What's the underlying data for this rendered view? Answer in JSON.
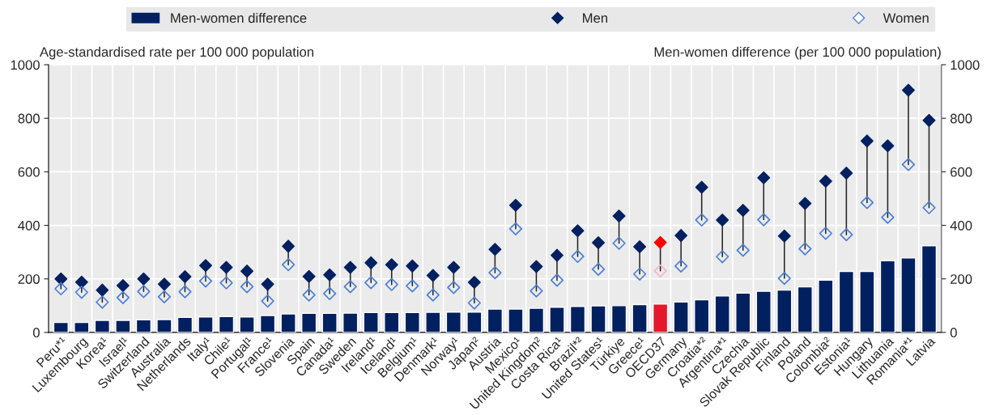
{
  "chart_data": {
    "type": "bar",
    "ylabel": "Age-standardised rate per 100 000 population",
    "y2label": "Men-women difference (per 100 000 population)",
    "categories": [
      "Peru*¹",
      "Luxembourg",
      "Korea¹",
      "Israel¹",
      "Switzerland",
      "Australia",
      "Netherlands",
      "Italy¹",
      "Chile¹",
      "Portugal¹",
      "France¹",
      "Slovenia",
      "Spain",
      "Canada¹",
      "Sweden",
      "Ireland¹",
      "Iceland¹",
      "Belgium¹",
      "Denmark¹",
      "Norway¹",
      "Japan²",
      "Austria",
      "Mexico¹",
      "United Kingdom²",
      "Costa Rica¹",
      "Brazil*²",
      "United States¹",
      "Türkiye",
      "Greece¹",
      "OECD37",
      "Germany",
      "Croatia*²",
      "Argentina*¹",
      "Czechia",
      "Slovak Republic",
      "Finland",
      "Poland",
      "Colombia²",
      "Estonia¹",
      "Hungary",
      "Lithuania",
      "Romania*¹",
      "Latvia"
    ],
    "series": [
      {
        "name": "Men-women difference",
        "axis": "y2",
        "color": "#002060",
        "colors": [
          "#002060",
          "#002060",
          "#002060",
          "#002060",
          "#002060",
          "#002060",
          "#002060",
          "#002060",
          "#002060",
          "#002060",
          "#002060",
          "#002060",
          "#002060",
          "#002060",
          "#002060",
          "#002060",
          "#002060",
          "#002060",
          "#002060",
          "#002060",
          "#002060",
          "#002060",
          "#002060",
          "#002060",
          "#002060",
          "#002060",
          "#002060",
          "#002060",
          "#002060",
          "#e3182d",
          "#002060",
          "#002060",
          "#002060",
          "#002060",
          "#002060",
          "#002060",
          "#002060",
          "#002060",
          "#002060",
          "#002060",
          "#002060",
          "#002060",
          "#002060"
        ],
        "values": [
          37,
          37,
          45,
          45,
          47,
          48,
          56,
          58,
          59,
          58,
          63,
          69,
          71,
          71,
          72,
          74,
          74,
          74,
          75,
          76,
          76,
          87,
          87,
          90,
          94,
          97,
          99,
          100,
          104,
          106,
          114,
          122,
          136,
          147,
          154,
          158,
          170,
          195,
          228,
          228,
          268,
          278,
          324
        ]
      },
      {
        "name": "Men",
        "type": "scatter",
        "marker": "diamond",
        "color": "#002060",
        "colors": [
          "#002060",
          "#002060",
          "#002060",
          "#002060",
          "#002060",
          "#002060",
          "#002060",
          "#002060",
          "#002060",
          "#002060",
          "#002060",
          "#002060",
          "#002060",
          "#002060",
          "#002060",
          "#002060",
          "#002060",
          "#002060",
          "#002060",
          "#002060",
          "#002060",
          "#002060",
          "#002060",
          "#002060",
          "#002060",
          "#002060",
          "#002060",
          "#002060",
          "#002060",
          "#ff0000",
          "#002060",
          "#002060",
          "#002060",
          "#002060",
          "#002060",
          "#002060",
          "#002060",
          "#002060",
          "#002060",
          "#002060",
          "#002060",
          "#002060",
          "#002060"
        ],
        "values": [
          200,
          188,
          158,
          175,
          200,
          180,
          208,
          250,
          243,
          229,
          180,
          322,
          209,
          215,
          243,
          260,
          253,
          248,
          213,
          243,
          187,
          310,
          475,
          246,
          288,
          380,
          335,
          435,
          320,
          336,
          362,
          542,
          420,
          456,
          578,
          360,
          482,
          565,
          595,
          715,
          697,
          905,
          792
        ]
      },
      {
        "name": "Women",
        "type": "scatter",
        "marker": "diamond",
        "color": "#4a7fd4",
        "colors": [
          "#4a7fd4",
          "#4a7fd4",
          "#4a7fd4",
          "#4a7fd4",
          "#4a7fd4",
          "#4a7fd4",
          "#4a7fd4",
          "#4a7fd4",
          "#4a7fd4",
          "#4a7fd4",
          "#4a7fd4",
          "#4a7fd4",
          "#4a7fd4",
          "#4a7fd4",
          "#4a7fd4",
          "#4a7fd4",
          "#4a7fd4",
          "#4a7fd4",
          "#4a7fd4",
          "#4a7fd4",
          "#4a7fd4",
          "#4a7fd4",
          "#4a7fd4",
          "#4a7fd4",
          "#4a7fd4",
          "#4a7fd4",
          "#4a7fd4",
          "#4a7fd4",
          "#4a7fd4",
          "#f4b6c2",
          "#4a7fd4",
          "#4a7fd4",
          "#4a7fd4",
          "#4a7fd4",
          "#4a7fd4",
          "#4a7fd4",
          "#4a7fd4",
          "#4a7fd4",
          "#4a7fd4",
          "#4a7fd4",
          "#4a7fd4",
          "#4a7fd4",
          "#4a7fd4"
        ],
        "values": [
          163,
          150,
          113,
          130,
          153,
          133,
          152,
          192,
          185,
          171,
          117,
          253,
          140,
          145,
          171,
          186,
          179,
          174,
          140,
          168,
          110,
          223,
          387,
          155,
          195,
          284,
          236,
          333,
          218,
          230,
          248,
          420,
          283,
          307,
          421,
          202,
          312,
          370,
          365,
          485,
          430,
          627,
          466
        ]
      }
    ],
    "ylim": [
      0,
      1000
    ],
    "yticks": [
      0,
      200,
      400,
      600,
      800,
      1000
    ],
    "y2lim": [
      0,
      1000
    ],
    "y2ticks": [
      0,
      200,
      400,
      600,
      800,
      1000
    ],
    "grid": true,
    "legend": "top"
  }
}
